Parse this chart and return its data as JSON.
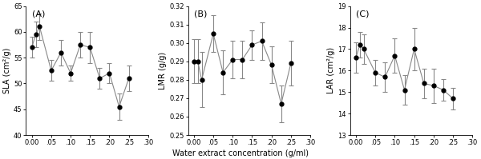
{
  "x": [
    0.0,
    0.01,
    0.02,
    0.05,
    0.075,
    0.1,
    0.125,
    0.15,
    0.175,
    0.2,
    0.225,
    0.25
  ],
  "SLA_y": [
    57.0,
    59.5,
    61.0,
    52.5,
    56.0,
    52.0,
    57.5,
    57.0,
    51.0,
    52.0,
    45.5,
    51.0
  ],
  "SLA_yerr": [
    2.0,
    2.5,
    2.5,
    2.0,
    2.5,
    1.5,
    2.5,
    3.0,
    2.0,
    2.0,
    2.5,
    2.5
  ],
  "SLA_ylim": [
    40,
    65
  ],
  "SLA_yticks": [
    40,
    45,
    50,
    55,
    60,
    65
  ],
  "SLA_ylabel": "SLA (cm²/g)",
  "SLA_label": "(A)",
  "LMR_y": [
    0.29,
    0.29,
    0.28,
    0.305,
    0.284,
    0.291,
    0.291,
    0.299,
    0.301,
    0.288,
    0.267,
    0.289
  ],
  "LMR_yerr": [
    0.012,
    0.012,
    0.015,
    0.01,
    0.012,
    0.01,
    0.01,
    0.008,
    0.01,
    0.01,
    0.01,
    0.012
  ],
  "LMR_ylim": [
    0.25,
    0.32
  ],
  "LMR_yticks": [
    0.25,
    0.26,
    0.27,
    0.28,
    0.29,
    0.3,
    0.31,
    0.32
  ],
  "LMR_ylabel": "LMR (g/g)",
  "LMR_label": "(B)",
  "LAR_y": [
    16.6,
    17.2,
    17.0,
    15.9,
    15.7,
    16.7,
    15.1,
    17.0,
    15.4,
    15.3,
    15.1,
    14.7
  ],
  "LAR_yerr": [
    0.7,
    0.6,
    0.7,
    0.6,
    0.7,
    0.8,
    0.7,
    1.0,
    0.7,
    0.8,
    0.5,
    0.5
  ],
  "LAR_ylim": [
    13,
    19
  ],
  "LAR_yticks": [
    13,
    14,
    15,
    16,
    17,
    18,
    19
  ],
  "LAR_ylabel": "LAR (cm²/g)",
  "LAR_label": "(C)",
  "xlim": [
    -0.015,
    0.275
  ],
  "xticks": [
    0.0,
    0.05,
    0.1,
    0.15,
    0.2,
    0.25
  ],
  "xticklabels": [
    "0.00",
    ".05",
    ".10",
    ".15",
    ".20",
    ".25"
  ],
  "xlim_right": 0.3,
  "xlabel": "Water extract concentration (g/ml)",
  "line_color": "#888888",
  "marker_color": "black",
  "marker_size": 3.5,
  "line_width": 0.8,
  "cap_size": 2,
  "elinewidth": 0.8,
  "bg_color": "white",
  "tick_fontsize": 6,
  "label_fontsize": 7,
  "panel_fontsize": 8
}
